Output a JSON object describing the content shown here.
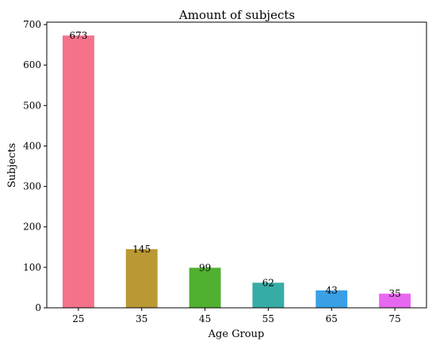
{
  "chart_data": {
    "type": "bar",
    "title": "Amount of subjects",
    "xlabel": "Age Group",
    "ylabel": "Subjects",
    "categories": [
      "25",
      "35",
      "45",
      "55",
      "65",
      "75"
    ],
    "values": [
      673,
      145,
      99,
      62,
      43,
      35
    ],
    "data_labels": [
      "673",
      "145",
      "99",
      "62",
      "43",
      "35"
    ],
    "colors": [
      "#f5728a",
      "#ba9833",
      "#50b030",
      "#36ada4",
      "#3aa0e6",
      "#e867f0"
    ],
    "yticks": [
      0,
      100,
      200,
      300,
      400,
      500,
      600,
      700
    ],
    "ylim": [
      0,
      706
    ],
    "grid": false,
    "legend": "none"
  }
}
